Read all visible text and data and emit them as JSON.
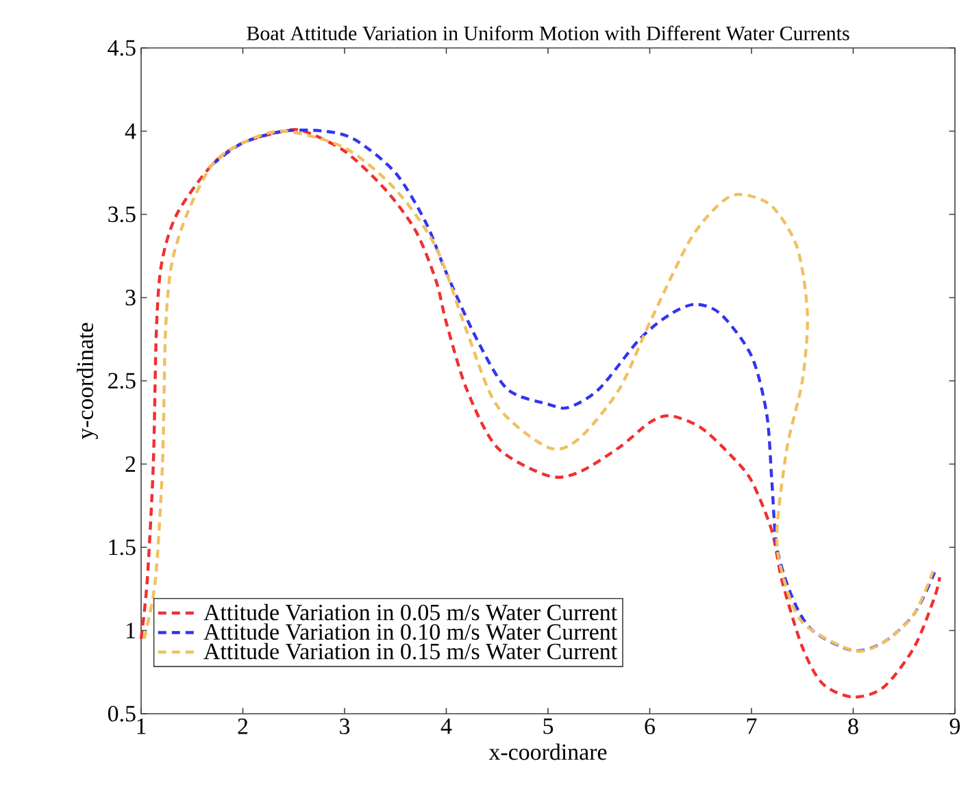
{
  "chart_data": {
    "type": "line",
    "title": "Boat Attitude Variation in Uniform Motion with Different Water Currents",
    "xlabel": "x-coordinare",
    "ylabel": "y-coordinate",
    "xlim": [
      1,
      9
    ],
    "ylim": [
      0.5,
      4.5
    ],
    "xticks": [
      1,
      2,
      3,
      4,
      5,
      6,
      7,
      8,
      9
    ],
    "yticks": [
      0.5,
      1,
      1.5,
      2,
      2.5,
      3,
      3.5,
      4,
      4.5
    ],
    "legend": "bottom left",
    "line_style": "dashed",
    "series": [
      {
        "name": "Attitude Variation in 0.05 m/s Water Current",
        "color": "#f03030",
        "x": [
          1.0,
          1.06,
          1.12,
          1.15,
          1.2,
          1.35,
          1.7,
          2.0,
          2.4,
          2.6,
          3.0,
          3.4,
          3.7,
          3.9,
          4.0,
          4.2,
          4.5,
          5.0,
          5.3,
          5.7,
          6.0,
          6.2,
          6.5,
          6.8,
          7.0,
          7.2,
          7.3,
          7.5,
          7.7,
          8.0,
          8.3,
          8.6,
          8.8,
          8.85
        ],
        "values": [
          0.95,
          1.3,
          2.0,
          2.8,
          3.2,
          3.5,
          3.8,
          3.93,
          4.0,
          4.0,
          3.88,
          3.65,
          3.4,
          3.1,
          2.85,
          2.45,
          2.1,
          1.93,
          1.95,
          2.1,
          2.25,
          2.29,
          2.22,
          2.05,
          1.9,
          1.6,
          1.3,
          0.9,
          0.68,
          0.6,
          0.66,
          0.9,
          1.2,
          1.32
        ]
      },
      {
        "name": "Attitude Variation in 0.10 m/s Water Current",
        "color": "#3434f0",
        "x": [
          1.7,
          2.0,
          2.4,
          2.8,
          3.1,
          3.5,
          3.8,
          4.0,
          4.3,
          4.6,
          5.0,
          5.2,
          5.5,
          5.9,
          6.2,
          6.45,
          6.7,
          7.0,
          7.15,
          7.2,
          7.25,
          7.4,
          7.6,
          8.0,
          8.3,
          8.6,
          8.8
        ],
        "values": [
          3.8,
          3.93,
          4.0,
          4.0,
          3.95,
          3.75,
          3.45,
          3.15,
          2.75,
          2.45,
          2.36,
          2.34,
          2.45,
          2.75,
          2.9,
          2.96,
          2.9,
          2.65,
          2.3,
          1.9,
          1.5,
          1.2,
          1.0,
          0.88,
          0.93,
          1.1,
          1.35
        ]
      },
      {
        "name": "Attitude Variation in 0.15 m/s Water Current",
        "color": "#f0c060",
        "x": [
          1.03,
          1.14,
          1.21,
          1.24,
          1.3,
          1.45,
          1.7,
          2.0,
          2.4,
          3.0,
          3.5,
          3.9,
          4.2,
          4.5,
          5.0,
          5.3,
          5.7,
          6.0,
          6.4,
          6.7,
          6.9,
          7.2,
          7.45,
          7.55,
          7.5,
          7.35,
          7.25,
          7.3,
          7.5,
          8.0,
          8.3,
          8.6,
          8.8
        ],
        "values": [
          0.95,
          1.3,
          2.0,
          2.8,
          3.2,
          3.5,
          3.8,
          3.93,
          4.0,
          3.9,
          3.65,
          3.3,
          2.8,
          2.35,
          2.1,
          2.15,
          2.45,
          2.85,
          3.35,
          3.57,
          3.62,
          3.55,
          3.3,
          2.9,
          2.5,
          2.1,
          1.6,
          1.35,
          1.05,
          0.88,
          0.93,
          1.1,
          1.38
        ]
      }
    ]
  }
}
